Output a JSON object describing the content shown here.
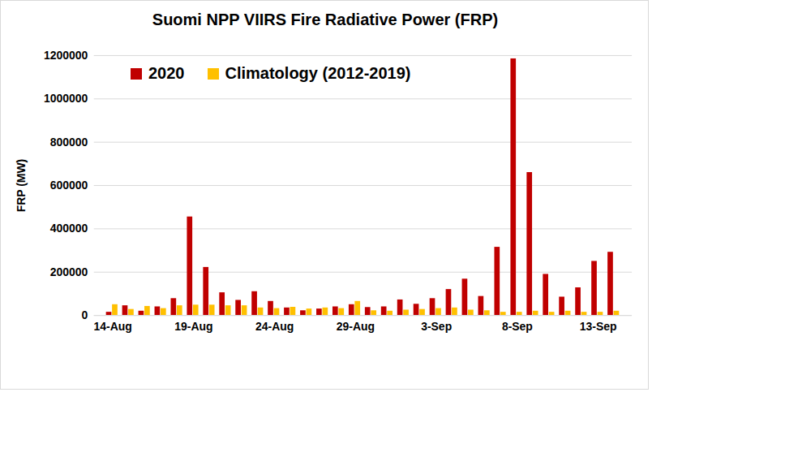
{
  "chart_data": {
    "type": "bar",
    "title": "Suomi NPP VIIRS Fire Radiative Power (FRP)",
    "y_label": "FRP (MW)",
    "categories": [
      "14-Aug",
      null,
      null,
      null,
      null,
      "19-Aug",
      null,
      null,
      null,
      null,
      "24-Aug",
      null,
      null,
      null,
      null,
      "29-Aug",
      null,
      null,
      null,
      null,
      "3-Sep",
      null,
      null,
      null,
      null,
      "8-Sep",
      null,
      null,
      null,
      null,
      "13-Sep",
      null
    ],
    "series": [
      {
        "name": "2020",
        "color": "#c00000",
        "values": [
          15000,
          45000,
          20000,
          40000,
          78000,
          455000,
          222000,
          105000,
          70000,
          110000,
          65000,
          35000,
          22000,
          30000,
          40000,
          50000,
          37000,
          40000,
          72000,
          52000,
          78000,
          120000,
          168000,
          88000,
          315000,
          1185000,
          660000,
          190000,
          85000,
          128000,
          250000,
          292000
        ]
      },
      {
        "name": "Climatology (2012-2019)",
        "color": "#ffc000",
        "values": [
          50000,
          28000,
          42000,
          32000,
          45000,
          48000,
          48000,
          45000,
          45000,
          35000,
          32000,
          38000,
          30000,
          35000,
          32000,
          65000,
          22000,
          20000,
          25000,
          28000,
          32000,
          35000,
          25000,
          22000,
          15000,
          15000,
          20000,
          15000,
          20000,
          15000,
          15000,
          20000
        ]
      }
    ],
    "ylim": [
      0,
      1200000
    ],
    "yticks": [
      0,
      200000,
      400000,
      600000,
      800000,
      1000000,
      1200000
    ],
    "grid": true,
    "legend": "top-left"
  }
}
